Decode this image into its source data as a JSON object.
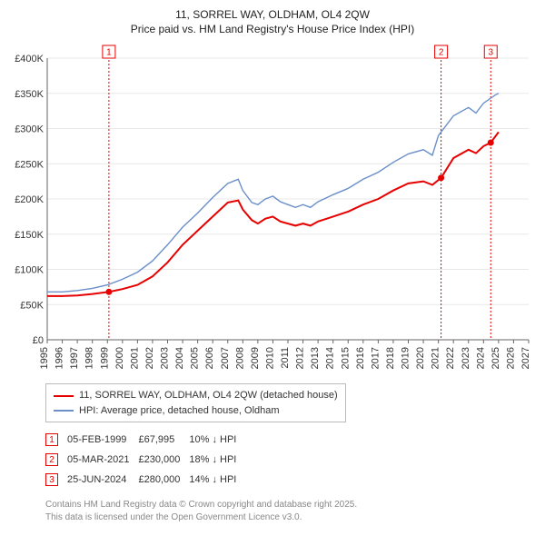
{
  "title_line1": "11, SORREL WAY, OLDHAM, OL4 2QW",
  "title_line2": "Price paid vs. HM Land Registry's House Price Index (HPI)",
  "chart": {
    "type": "line",
    "background_color": "#ffffff",
    "grid_color": "#e8e8e8",
    "axis_color": "#666666",
    "label_color": "#333333",
    "label_fontsize": 11,
    "x": {
      "min": 1995,
      "max": 2027,
      "ticks": [
        1995,
        1996,
        1997,
        1998,
        1999,
        2000,
        2001,
        2002,
        2003,
        2004,
        2005,
        2006,
        2007,
        2008,
        2009,
        2010,
        2011,
        2012,
        2013,
        2014,
        2015,
        2016,
        2017,
        2018,
        2019,
        2020,
        2021,
        2022,
        2023,
        2024,
        2025,
        2026,
        2027
      ]
    },
    "y": {
      "min": 0,
      "max": 400000,
      "ticks": [
        0,
        50000,
        100000,
        150000,
        200000,
        250000,
        300000,
        350000,
        400000
      ],
      "tick_labels": [
        "£0",
        "£50K",
        "£100K",
        "£150K",
        "£200K",
        "£250K",
        "£300K",
        "£350K",
        "£400K"
      ]
    },
    "series": [
      {
        "name": "price_paid",
        "label": "11, SORREL WAY, OLDHAM, OL4 2QW (detached house)",
        "color": "#e60000",
        "line_width": 2,
        "data": [
          [
            1995,
            62000
          ],
          [
            1996,
            62000
          ],
          [
            1997,
            63000
          ],
          [
            1998,
            65000
          ],
          [
            1999.1,
            67995
          ],
          [
            2000,
            72000
          ],
          [
            2001,
            78000
          ],
          [
            2002,
            90000
          ],
          [
            2003,
            110000
          ],
          [
            2004,
            135000
          ],
          [
            2005,
            155000
          ],
          [
            2006,
            175000
          ],
          [
            2007,
            195000
          ],
          [
            2007.7,
            198000
          ],
          [
            2008,
            185000
          ],
          [
            2008.6,
            170000
          ],
          [
            2009,
            165000
          ],
          [
            2009.5,
            172000
          ],
          [
            2010,
            175000
          ],
          [
            2010.5,
            168000
          ],
          [
            2011,
            165000
          ],
          [
            2011.5,
            162000
          ],
          [
            2012,
            165000
          ],
          [
            2012.5,
            162000
          ],
          [
            2013,
            168000
          ],
          [
            2014,
            175000
          ],
          [
            2015,
            182000
          ],
          [
            2016,
            192000
          ],
          [
            2017,
            200000
          ],
          [
            2018,
            212000
          ],
          [
            2019,
            222000
          ],
          [
            2020,
            225000
          ],
          [
            2020.6,
            220000
          ],
          [
            2021.18,
            230000
          ],
          [
            2022,
            258000
          ],
          [
            2023,
            270000
          ],
          [
            2023.5,
            265000
          ],
          [
            2024,
            275000
          ],
          [
            2024.48,
            280000
          ],
          [
            2025,
            295000
          ]
        ]
      },
      {
        "name": "hpi",
        "label": "HPI: Average price, detached house, Oldham",
        "color": "#6b8fc9",
        "line_width": 1.4,
        "data": [
          [
            1995,
            68000
          ],
          [
            1996,
            68000
          ],
          [
            1997,
            70000
          ],
          [
            1998,
            73000
          ],
          [
            1999,
            78000
          ],
          [
            2000,
            86000
          ],
          [
            2001,
            96000
          ],
          [
            2002,
            112000
          ],
          [
            2003,
            135000
          ],
          [
            2004,
            160000
          ],
          [
            2005,
            180000
          ],
          [
            2006,
            202000
          ],
          [
            2007,
            222000
          ],
          [
            2007.7,
            228000
          ],
          [
            2008,
            212000
          ],
          [
            2008.6,
            195000
          ],
          [
            2009,
            192000
          ],
          [
            2009.5,
            200000
          ],
          [
            2010,
            204000
          ],
          [
            2010.5,
            196000
          ],
          [
            2011,
            192000
          ],
          [
            2011.5,
            188000
          ],
          [
            2012,
            192000
          ],
          [
            2012.5,
            188000
          ],
          [
            2013,
            196000
          ],
          [
            2014,
            206000
          ],
          [
            2015,
            215000
          ],
          [
            2016,
            228000
          ],
          [
            2017,
            238000
          ],
          [
            2018,
            252000
          ],
          [
            2019,
            264000
          ],
          [
            2020,
            270000
          ],
          [
            2020.6,
            262000
          ],
          [
            2021,
            290000
          ],
          [
            2022,
            318000
          ],
          [
            2023,
            330000
          ],
          [
            2023.5,
            322000
          ],
          [
            2024,
            336000
          ],
          [
            2024.8,
            348000
          ],
          [
            2025,
            350000
          ]
        ]
      }
    ],
    "markers": [
      {
        "id": "1",
        "x": 1999.1
      },
      {
        "id": "2",
        "x": 2021.18
      },
      {
        "id": "3",
        "x": 2024.48
      }
    ],
    "transaction_points": [
      {
        "x": 1999.1,
        "y": 67995
      },
      {
        "x": 2021.18,
        "y": 230000
      },
      {
        "x": 2024.48,
        "y": 280000
      }
    ]
  },
  "legend": {
    "items": [
      {
        "color": "#e60000",
        "label": "11, SORREL WAY, OLDHAM, OL4 2QW (detached house)"
      },
      {
        "color": "#6b8fc9",
        "label": "HPI: Average price, detached house, Oldham"
      }
    ]
  },
  "transactions": [
    {
      "id": "1",
      "date": "05-FEB-1999",
      "price": "£67,995",
      "delta": "10% ↓ HPI"
    },
    {
      "id": "2",
      "date": "05-MAR-2021",
      "price": "£230,000",
      "delta": "18% ↓ HPI"
    },
    {
      "id": "3",
      "date": "25-JUN-2024",
      "price": "£280,000",
      "delta": "14% ↓ HPI"
    }
  ],
  "footer_line1": "Contains HM Land Registry data © Crown copyright and database right 2025.",
  "footer_line2": "This data is licensed under the Open Government Licence v3.0."
}
